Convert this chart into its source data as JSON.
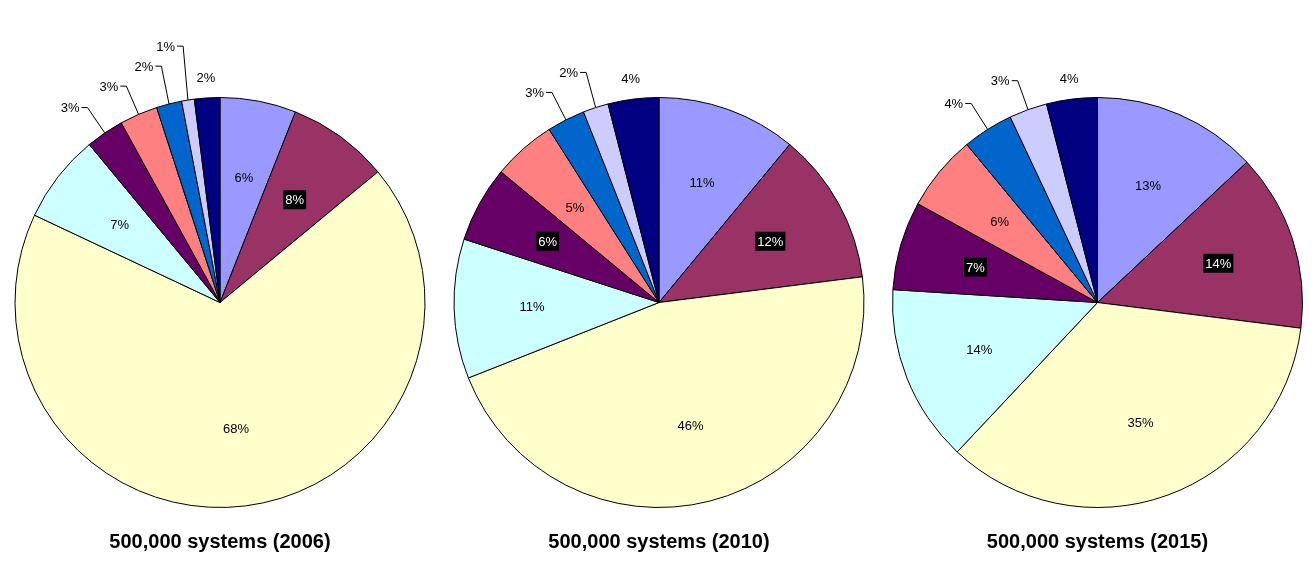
{
  "chart_data": [
    {
      "type": "pie",
      "title": "500,000 systems (2006)",
      "categories": [
        null,
        null,
        null,
        null,
        null,
        null,
        null,
        null,
        null
      ],
      "values": [
        6,
        8,
        68,
        7,
        3,
        3,
        2,
        1,
        2
      ],
      "value_labels": [
        "6%",
        "8%",
        "68%",
        "7%",
        "3%",
        "3%",
        "2%",
        "1%",
        "2%"
      ],
      "colors": [
        "#9999ff",
        "#993366",
        "#ffffcc",
        "#ccffff",
        "#660066",
        "#ff8080",
        "#0066cc",
        "#ccccff",
        "#000080"
      ]
    },
    {
      "type": "pie",
      "title": "500,000 systems (2010)",
      "categories": [
        null,
        null,
        null,
        null,
        null,
        null,
        null,
        null,
        null
      ],
      "values": [
        11,
        12,
        46,
        11,
        6,
        5,
        3,
        2,
        4
      ],
      "value_labels": [
        "11%",
        "12%",
        "46%",
        "11%",
        "6%",
        "5%",
        "3%",
        "2%",
        "4%"
      ],
      "colors": [
        "#9999ff",
        "#993366",
        "#ffffcc",
        "#ccffff",
        "#660066",
        "#ff8080",
        "#0066cc",
        "#ccccff",
        "#000080"
      ]
    },
    {
      "type": "pie",
      "title": "500,000 systems (2015)",
      "categories": [
        null,
        null,
        null,
        null,
        null,
        null,
        null,
        null,
        null
      ],
      "values": [
        13,
        14,
        35,
        14,
        7,
        6,
        4,
        3,
        4
      ],
      "value_labels": [
        "13%",
        "14%",
        "35%",
        "14%",
        "7%",
        "6%",
        "4%",
        "3%",
        "4%"
      ],
      "colors": [
        "#9999ff",
        "#993366",
        "#ffffcc",
        "#ccffff",
        "#660066",
        "#ff8080",
        "#0066cc",
        "#ccccff",
        "#000080"
      ]
    }
  ]
}
